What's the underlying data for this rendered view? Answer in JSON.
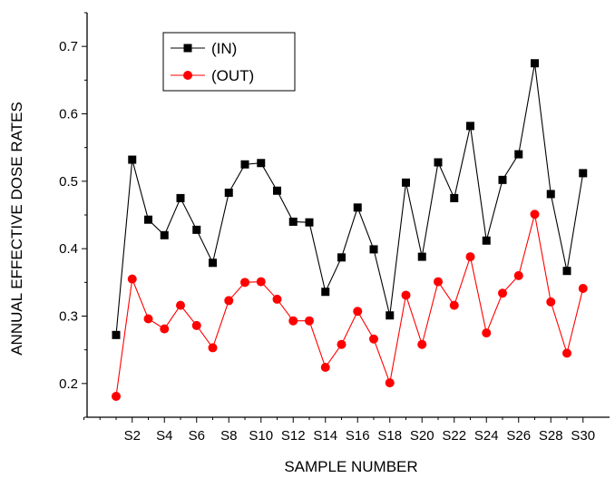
{
  "chart_data": {
    "type": "line",
    "title": "",
    "xlabel": "SAMPLE NUMBER",
    "ylabel": "ANNUAL EFFECTIVE DOSE RATES",
    "x": [
      "S1",
      "S2",
      "S3",
      "S4",
      "S5",
      "S6",
      "S7",
      "S8",
      "S9",
      "S10",
      "S11",
      "S12",
      "S13",
      "S14",
      "S15",
      "S16",
      "S17",
      "S18",
      "S19",
      "S20",
      "S21",
      "S22",
      "S23",
      "S24",
      "S25",
      "S26",
      "S27",
      "S28",
      "S29",
      "S30"
    ],
    "x_tick_labels": [
      "S2",
      "S4",
      "S6",
      "S8",
      "S10",
      "S12",
      "S14",
      "S16",
      "S18",
      "S20",
      "S22",
      "S24",
      "S26",
      "S28",
      "S30"
    ],
    "ylim": [
      0.15,
      0.75
    ],
    "y_ticks": [
      "0.2",
      "0.3",
      "0.4",
      "0.5",
      "0.6",
      "0.7"
    ],
    "grid": false,
    "legend_position": "top-left",
    "series": [
      {
        "name": "(IN)",
        "color": "#000000",
        "marker": "square",
        "values": [
          0.272,
          0.532,
          0.443,
          0.42,
          0.475,
          0.428,
          0.379,
          0.483,
          0.525,
          0.527,
          0.486,
          0.44,
          0.439,
          0.336,
          0.387,
          0.461,
          0.399,
          0.301,
          0.498,
          0.388,
          0.528,
          0.475,
          0.582,
          0.412,
          0.502,
          0.54,
          0.675,
          0.481,
          0.367,
          0.512
        ]
      },
      {
        "name": "(OUT)",
        "color": "#ff0000",
        "marker": "circle",
        "values": [
          0.181,
          0.355,
          0.296,
          0.281,
          0.316,
          0.286,
          0.253,
          0.323,
          0.35,
          0.351,
          0.325,
          0.293,
          0.293,
          0.224,
          0.258,
          0.307,
          0.266,
          0.201,
          0.331,
          0.258,
          0.351,
          0.316,
          0.388,
          0.275,
          0.334,
          0.36,
          0.451,
          0.321,
          0.245,
          0.341
        ]
      }
    ]
  }
}
